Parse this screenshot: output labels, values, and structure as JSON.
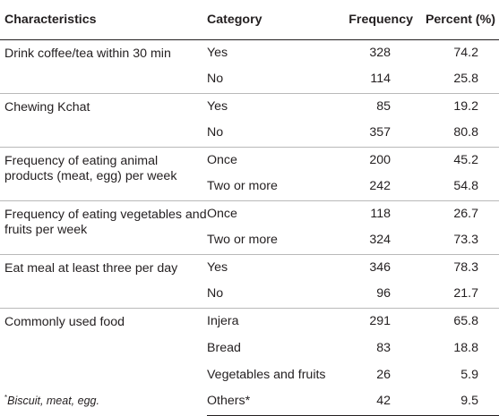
{
  "table": {
    "headers": {
      "characteristics": "Characteristics",
      "category": "Category",
      "frequency": "Frequency",
      "percent": "Percent (%)"
    },
    "rows": [
      {
        "characteristic": "Drink coffee/tea within 30 min",
        "category": "Yes",
        "frequency": "328",
        "percent": "74.2"
      },
      {
        "characteristic": "",
        "category": "No",
        "frequency": "114",
        "percent": "25.8"
      },
      {
        "characteristic": "Chewing Kchat",
        "category": "Yes",
        "frequency": "85",
        "percent": "19.2"
      },
      {
        "characteristic": "",
        "category": "No",
        "frequency": "357",
        "percent": "80.8"
      },
      {
        "characteristic": "Frequency of eating animal products (meat, egg) per week",
        "category": "Once",
        "frequency": "200",
        "percent": "45.2"
      },
      {
        "characteristic": "",
        "category": "Two or more",
        "frequency": "242",
        "percent": "54.8"
      },
      {
        "characteristic": "Frequency of eating vegetables and fruits per week",
        "category": "Once",
        "frequency": "118",
        "percent": "26.7"
      },
      {
        "characteristic": "",
        "category": "Two or more",
        "frequency": "324",
        "percent": "73.3"
      },
      {
        "characteristic": "Eat meal at least three per day",
        "category": "Yes",
        "frequency": "346",
        "percent": "78.3"
      },
      {
        "characteristic": "",
        "category": "No",
        "frequency": "96",
        "percent": "21.7"
      },
      {
        "characteristic": "Commonly used food",
        "category": "Injera",
        "frequency": "291",
        "percent": "65.8"
      },
      {
        "characteristic": "",
        "category": "Bread",
        "frequency": "83",
        "percent": "18.8"
      },
      {
        "characteristic": "",
        "category": "Vegetables and fruits",
        "frequency": "26",
        "percent": "5.9"
      },
      {
        "characteristic": "",
        "category": "Others*",
        "frequency": "42",
        "percent": "9.5"
      }
    ]
  },
  "footnote": {
    "marker": "*",
    "text": "Biscuit, meat, egg."
  }
}
